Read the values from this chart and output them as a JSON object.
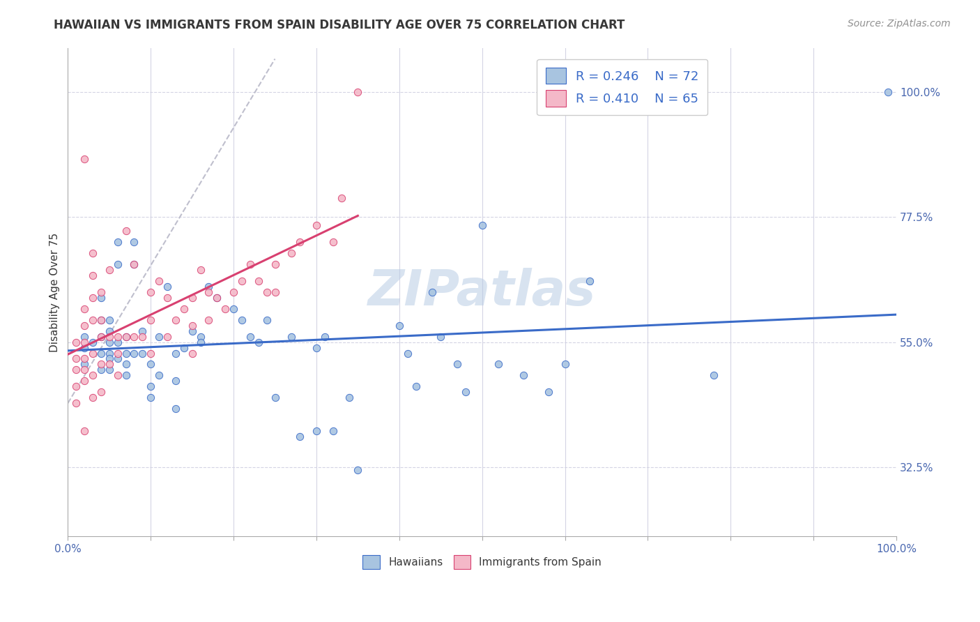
{
  "title": "HAWAIIAN VS IMMIGRANTS FROM SPAIN DISABILITY AGE OVER 75 CORRELATION CHART",
  "source": "Source: ZipAtlas.com",
  "ylabel": "Disability Age Over 75",
  "watermark": "ZIPatlas",
  "xlim": [
    0.0,
    1.0
  ],
  "ylim": [
    0.2,
    1.08
  ],
  "yticks": [
    0.325,
    0.55,
    0.775,
    1.0
  ],
  "ytick_labels": [
    "32.5%",
    "55.0%",
    "77.5%",
    "100.0%"
  ],
  "xtick_labels": [
    "0.0%",
    "100.0%"
  ],
  "legend_row1": "R = 0.246    N = 72",
  "legend_row2": "R = 0.410    N = 65",
  "hawaiian_color": "#a8c4e0",
  "spain_color": "#f4b8c8",
  "hawaiian_line_color": "#3a6bc8",
  "spain_line_color": "#d84070",
  "dashed_line_color": "#b8b8c8",
  "background_color": "#ffffff",
  "grid_color": "#d4d4e4",
  "title_color": "#383838",
  "source_color": "#909090",
  "axis_label_color": "#4a68b0",
  "legend_color": "#3a6bc8",
  "hawaiian_scatter_x": [
    0.02,
    0.02,
    0.02,
    0.03,
    0.04,
    0.04,
    0.04,
    0.04,
    0.04,
    0.05,
    0.05,
    0.05,
    0.05,
    0.05,
    0.05,
    0.06,
    0.06,
    0.06,
    0.06,
    0.07,
    0.07,
    0.07,
    0.07,
    0.08,
    0.08,
    0.08,
    0.09,
    0.09,
    0.1,
    0.1,
    0.1,
    0.11,
    0.11,
    0.12,
    0.13,
    0.13,
    0.13,
    0.14,
    0.15,
    0.16,
    0.16,
    0.17,
    0.18,
    0.2,
    0.21,
    0.22,
    0.23,
    0.24,
    0.25,
    0.27,
    0.28,
    0.3,
    0.3,
    0.31,
    0.32,
    0.34,
    0.35,
    0.4,
    0.41,
    0.42,
    0.44,
    0.45,
    0.47,
    0.48,
    0.5,
    0.52,
    0.55,
    0.58,
    0.6,
    0.63,
    0.78,
    0.99
  ],
  "hawaiian_scatter_y": [
    0.56,
    0.54,
    0.51,
    0.55,
    0.63,
    0.59,
    0.56,
    0.53,
    0.5,
    0.59,
    0.57,
    0.55,
    0.53,
    0.52,
    0.5,
    0.73,
    0.69,
    0.55,
    0.52,
    0.56,
    0.53,
    0.51,
    0.49,
    0.73,
    0.69,
    0.53,
    0.57,
    0.53,
    0.51,
    0.47,
    0.45,
    0.56,
    0.49,
    0.65,
    0.53,
    0.48,
    0.43,
    0.54,
    0.57,
    0.56,
    0.55,
    0.65,
    0.63,
    0.61,
    0.59,
    0.56,
    0.55,
    0.59,
    0.45,
    0.56,
    0.38,
    0.54,
    0.39,
    0.56,
    0.39,
    0.45,
    0.32,
    0.58,
    0.53,
    0.47,
    0.64,
    0.56,
    0.51,
    0.46,
    0.76,
    0.51,
    0.49,
    0.46,
    0.51,
    0.66,
    0.49,
    1.0
  ],
  "spain_scatter_x": [
    0.01,
    0.01,
    0.01,
    0.01,
    0.01,
    0.02,
    0.02,
    0.02,
    0.02,
    0.02,
    0.02,
    0.02,
    0.03,
    0.03,
    0.03,
    0.03,
    0.03,
    0.03,
    0.03,
    0.04,
    0.04,
    0.04,
    0.04,
    0.04,
    0.05,
    0.05,
    0.05,
    0.06,
    0.06,
    0.06,
    0.07,
    0.07,
    0.08,
    0.08,
    0.09,
    0.1,
    0.1,
    0.1,
    0.11,
    0.12,
    0.12,
    0.13,
    0.14,
    0.15,
    0.15,
    0.15,
    0.16,
    0.17,
    0.17,
    0.18,
    0.19,
    0.2,
    0.21,
    0.22,
    0.23,
    0.24,
    0.25,
    0.25,
    0.27,
    0.28,
    0.3,
    0.32,
    0.33,
    0.35,
    0.02
  ],
  "spain_scatter_y": [
    0.55,
    0.52,
    0.5,
    0.47,
    0.44,
    0.61,
    0.58,
    0.55,
    0.52,
    0.5,
    0.48,
    0.39,
    0.71,
    0.67,
    0.63,
    0.59,
    0.53,
    0.49,
    0.45,
    0.64,
    0.59,
    0.56,
    0.51,
    0.46,
    0.68,
    0.56,
    0.51,
    0.56,
    0.53,
    0.49,
    0.75,
    0.56,
    0.69,
    0.56,
    0.56,
    0.64,
    0.59,
    0.53,
    0.66,
    0.63,
    0.56,
    0.59,
    0.61,
    0.63,
    0.58,
    0.53,
    0.68,
    0.64,
    0.59,
    0.63,
    0.61,
    0.64,
    0.66,
    0.69,
    0.66,
    0.64,
    0.69,
    0.64,
    0.71,
    0.73,
    0.76,
    0.73,
    0.81,
    1.0,
    0.88
  ],
  "title_fontsize": 12,
  "source_fontsize": 10,
  "label_fontsize": 11,
  "tick_fontsize": 11,
  "legend_fontsize": 13,
  "watermark_fontsize": 52,
  "marker_size": 55,
  "bottom_legend_labels": [
    "Hawaiians",
    "Immigrants from Spain"
  ]
}
